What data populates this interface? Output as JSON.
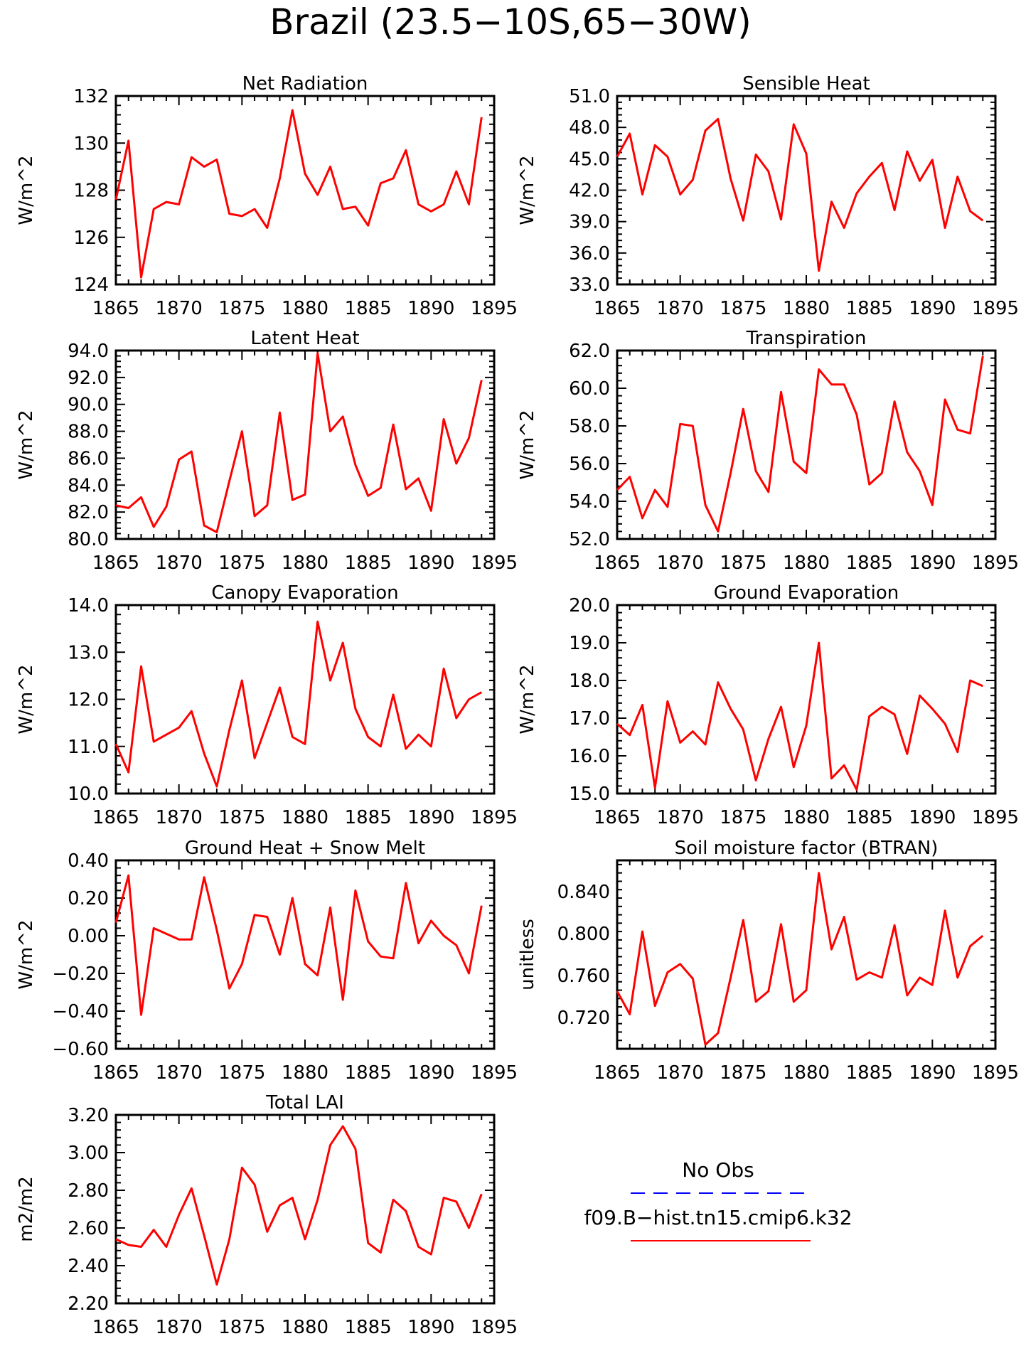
{
  "figure": {
    "title": "Brazil (23.5−10S,65−30W)"
  },
  "colors": {
    "series": "#ff0000",
    "obs": "#0000ff",
    "axis": "#000000",
    "background": "#ffffff"
  },
  "chart_data": [
    {
      "type": "line",
      "title": "Net Radiation",
      "ylabel": "W/m^2",
      "xlim": [
        1865,
        1895
      ],
      "x_ticks": [
        "1865",
        "1870",
        "1875",
        "1880",
        "1885",
        "1890",
        "1895"
      ],
      "ylim": [
        124,
        132
      ],
      "y_ticks": [
        "124",
        "126",
        "128",
        "130",
        "132"
      ],
      "series": [
        {
          "x": [
            1865,
            1866,
            1867,
            1868,
            1869,
            1870,
            1871,
            1872,
            1873,
            1874,
            1875,
            1876,
            1877,
            1878,
            1879,
            1880,
            1881,
            1882,
            1883,
            1884,
            1885,
            1886,
            1887,
            1888,
            1889,
            1890,
            1891,
            1892,
            1893,
            1894
          ],
          "y": [
            127.6,
            130.1,
            124.3,
            127.2,
            127.5,
            127.4,
            129.4,
            129.0,
            129.3,
            127.0,
            126.9,
            127.2,
            126.4,
            128.5,
            131.4,
            128.7,
            127.8,
            129.0,
            127.2,
            127.3,
            126.5,
            128.3,
            128.5,
            129.7,
            127.4,
            127.1,
            127.4,
            128.8,
            127.4,
            131.1
          ]
        }
      ]
    },
    {
      "type": "line",
      "title": "Sensible Heat",
      "ylabel": "W/m^2",
      "xlim": [
        1865,
        1895
      ],
      "x_ticks": [
        "1865",
        "1870",
        "1875",
        "1880",
        "1885",
        "1890",
        "1895"
      ],
      "ylim": [
        33,
        51
      ],
      "y_ticks": [
        "33.0",
        "36.0",
        "39.0",
        "42.0",
        "45.0",
        "48.0",
        "51.0"
      ],
      "series": [
        {
          "x": [
            1865,
            1866,
            1867,
            1868,
            1869,
            1870,
            1871,
            1872,
            1873,
            1874,
            1875,
            1876,
            1877,
            1878,
            1879,
            1880,
            1881,
            1882,
            1883,
            1884,
            1885,
            1886,
            1887,
            1888,
            1889,
            1890,
            1891,
            1892,
            1893,
            1894
          ],
          "y": [
            45.2,
            47.4,
            41.6,
            46.3,
            45.2,
            41.6,
            43.0,
            47.7,
            48.8,
            43.1,
            39.1,
            45.4,
            43.8,
            39.2,
            48.3,
            45.5,
            34.3,
            40.9,
            38.4,
            41.7,
            43.3,
            44.6,
            40.1,
            45.7,
            42.9,
            44.9,
            38.4,
            43.3,
            40.0,
            39.1
          ]
        }
      ]
    },
    {
      "type": "line",
      "title": "Latent Heat",
      "ylabel": "W/m^2",
      "xlim": [
        1865,
        1895
      ],
      "x_ticks": [
        "1865",
        "1870",
        "1875",
        "1880",
        "1885",
        "1890",
        "1895"
      ],
      "ylim": [
        80,
        94
      ],
      "y_ticks": [
        "80.0",
        "82.0",
        "84.0",
        "86.0",
        "88.0",
        "90.0",
        "92.0",
        "94.0"
      ],
      "series": [
        {
          "x": [
            1865,
            1866,
            1867,
            1868,
            1869,
            1870,
            1871,
            1872,
            1873,
            1874,
            1875,
            1876,
            1877,
            1878,
            1879,
            1880,
            1881,
            1882,
            1883,
            1884,
            1885,
            1886,
            1887,
            1888,
            1889,
            1890,
            1891,
            1892,
            1893,
            1894
          ],
          "y": [
            82.5,
            82.3,
            83.1,
            80.9,
            82.4,
            85.9,
            86.5,
            81.0,
            80.5,
            84.3,
            88.0,
            81.7,
            82.5,
            89.4,
            82.9,
            83.3,
            93.8,
            88.0,
            89.1,
            85.5,
            83.2,
            83.8,
            88.5,
            83.7,
            84.5,
            82.1,
            88.9,
            85.6,
            87.5,
            91.8
          ]
        }
      ]
    },
    {
      "type": "line",
      "title": "Transpiration",
      "ylabel": "W/m^2",
      "xlim": [
        1865,
        1895
      ],
      "x_ticks": [
        "1865",
        "1870",
        "1875",
        "1880",
        "1885",
        "1890",
        "1895"
      ],
      "ylim": [
        52,
        62
      ],
      "y_ticks": [
        "52.0",
        "54.0",
        "56.0",
        "58.0",
        "60.0",
        "62.0"
      ],
      "series": [
        {
          "x": [
            1865,
            1866,
            1867,
            1868,
            1869,
            1870,
            1871,
            1872,
            1873,
            1874,
            1875,
            1876,
            1877,
            1878,
            1879,
            1880,
            1881,
            1882,
            1883,
            1884,
            1885,
            1886,
            1887,
            1888,
            1889,
            1890,
            1891,
            1892,
            1893,
            1894
          ],
          "y": [
            54.6,
            55.3,
            53.1,
            54.6,
            53.7,
            58.1,
            58.0,
            53.8,
            52.4,
            55.5,
            58.9,
            55.6,
            54.5,
            59.8,
            56.1,
            55.5,
            61.0,
            60.2,
            60.2,
            58.6,
            54.9,
            55.5,
            59.3,
            56.6,
            55.6,
            53.8,
            59.4,
            57.8,
            57.6,
            61.7
          ]
        }
      ]
    },
    {
      "type": "line",
      "title": "Canopy Evaporation",
      "ylabel": "W/m^2",
      "xlim": [
        1865,
        1895
      ],
      "x_ticks": [
        "1865",
        "1870",
        "1875",
        "1880",
        "1885",
        "1890",
        "1895"
      ],
      "ylim": [
        10,
        14
      ],
      "y_ticks": [
        "10.0",
        "11.0",
        "12.0",
        "13.0",
        "14.0"
      ],
      "series": [
        {
          "x": [
            1865,
            1866,
            1867,
            1868,
            1869,
            1870,
            1871,
            1872,
            1873,
            1874,
            1875,
            1876,
            1877,
            1878,
            1879,
            1880,
            1881,
            1882,
            1883,
            1884,
            1885,
            1886,
            1887,
            1888,
            1889,
            1890,
            1891,
            1892,
            1893,
            1894
          ],
          "y": [
            11.05,
            10.45,
            12.7,
            11.1,
            11.25,
            11.4,
            11.75,
            10.85,
            10.15,
            11.35,
            12.4,
            10.75,
            11.5,
            12.25,
            11.2,
            11.05,
            13.65,
            12.4,
            13.2,
            11.8,
            11.2,
            11.0,
            12.1,
            10.95,
            11.25,
            11.0,
            12.65,
            11.6,
            12.0,
            12.15
          ]
        }
      ]
    },
    {
      "type": "line",
      "title": "Ground Evaporation",
      "ylabel": "W/m^2",
      "xlim": [
        1865,
        1895
      ],
      "x_ticks": [
        "1865",
        "1870",
        "1875",
        "1880",
        "1885",
        "1890",
        "1895"
      ],
      "ylim": [
        15,
        20
      ],
      "y_ticks": [
        "15.0",
        "16.0",
        "17.0",
        "18.0",
        "19.0",
        "20.0"
      ],
      "series": [
        {
          "x": [
            1865,
            1866,
            1867,
            1868,
            1869,
            1870,
            1871,
            1872,
            1873,
            1874,
            1875,
            1876,
            1877,
            1878,
            1879,
            1880,
            1881,
            1882,
            1883,
            1884,
            1885,
            1886,
            1887,
            1888,
            1889,
            1890,
            1891,
            1892,
            1893,
            1894
          ],
          "y": [
            16.85,
            16.55,
            17.35,
            15.15,
            17.45,
            16.35,
            16.65,
            16.3,
            17.95,
            17.25,
            16.7,
            15.35,
            16.45,
            17.3,
            15.7,
            16.8,
            19.0,
            15.4,
            15.75,
            15.1,
            17.05,
            17.3,
            17.1,
            16.05,
            17.6,
            17.25,
            16.85,
            16.1,
            18.0,
            17.85
          ]
        }
      ]
    },
    {
      "type": "line",
      "title": "Ground Heat + Snow Melt",
      "ylabel": "W/m^2",
      "xlim": [
        1865,
        1895
      ],
      "x_ticks": [
        "1865",
        "1870",
        "1875",
        "1880",
        "1885",
        "1890",
        "1895"
      ],
      "ylim": [
        -0.6,
        0.4
      ],
      "y_ticks": [
        "−0.60",
        "−0.40",
        "−0.20",
        "0.00",
        "0.20",
        "0.40"
      ],
      "series": [
        {
          "x": [
            1865,
            1866,
            1867,
            1868,
            1869,
            1870,
            1871,
            1872,
            1873,
            1874,
            1875,
            1876,
            1877,
            1878,
            1879,
            1880,
            1881,
            1882,
            1883,
            1884,
            1885,
            1886,
            1887,
            1888,
            1889,
            1890,
            1891,
            1892,
            1893,
            1894
          ],
          "y": [
            0.07,
            0.32,
            -0.42,
            0.04,
            0.01,
            -0.02,
            -0.02,
            0.31,
            0.03,
            -0.28,
            -0.15,
            0.11,
            0.1,
            -0.1,
            0.2,
            -0.15,
            -0.21,
            0.15,
            -0.34,
            0.24,
            -0.03,
            -0.11,
            -0.12,
            0.28,
            -0.04,
            0.08,
            0.0,
            -0.05,
            -0.2,
            0.16
          ]
        }
      ]
    },
    {
      "type": "line",
      "title": "Soil moisture factor (BTRAN)",
      "ylabel": "unitless",
      "xlim": [
        1865,
        1895
      ],
      "x_ticks": [
        "1865",
        "1870",
        "1875",
        "1880",
        "1885",
        "1890",
        "1895"
      ],
      "ylim": [
        0.69,
        0.87
      ],
      "y_ticks": [
        "0.720",
        "0.760",
        "0.800",
        "0.840"
      ],
      "y_tick_values": [
        0.72,
        0.76,
        0.8,
        0.84
      ],
      "series": [
        {
          "x": [
            1865,
            1866,
            1867,
            1868,
            1869,
            1870,
            1871,
            1872,
            1873,
            1874,
            1875,
            1876,
            1877,
            1878,
            1879,
            1880,
            1881,
            1882,
            1883,
            1884,
            1885,
            1886,
            1887,
            1888,
            1889,
            1890,
            1891,
            1892,
            1893,
            1894
          ],
          "y": [
            0.745,
            0.723,
            0.802,
            0.731,
            0.763,
            0.771,
            0.757,
            0.694,
            0.705,
            0.758,
            0.813,
            0.735,
            0.745,
            0.809,
            0.735,
            0.746,
            0.858,
            0.785,
            0.816,
            0.756,
            0.763,
            0.758,
            0.808,
            0.741,
            0.758,
            0.751,
            0.822,
            0.758,
            0.788,
            0.798
          ]
        }
      ]
    },
    {
      "type": "line",
      "title": "Total LAI",
      "ylabel": "m2/m2",
      "xlim": [
        1865,
        1895
      ],
      "x_ticks": [
        "1865",
        "1870",
        "1875",
        "1880",
        "1885",
        "1890",
        "1895"
      ],
      "ylim": [
        2.2,
        3.2
      ],
      "y_ticks": [
        "2.20",
        "2.40",
        "2.60",
        "2.80",
        "3.00",
        "3.20"
      ],
      "series": [
        {
          "x": [
            1865,
            1866,
            1867,
            1868,
            1869,
            1870,
            1871,
            1872,
            1873,
            1874,
            1875,
            1876,
            1877,
            1878,
            1879,
            1880,
            1881,
            1882,
            1883,
            1884,
            1885,
            1886,
            1887,
            1888,
            1889,
            1890,
            1891,
            1892,
            1893,
            1894
          ],
          "y": [
            2.54,
            2.51,
            2.5,
            2.59,
            2.5,
            2.67,
            2.81,
            2.56,
            2.3,
            2.54,
            2.92,
            2.83,
            2.58,
            2.72,
            2.76,
            2.54,
            2.75,
            3.04,
            3.14,
            3.02,
            2.52,
            2.47,
            2.75,
            2.69,
            2.5,
            2.46,
            2.76,
            2.74,
            2.6,
            2.78
          ]
        }
      ]
    }
  ],
  "legend": {
    "items": [
      {
        "label": "No Obs",
        "style": "dashed",
        "color": "#0000ff"
      },
      {
        "label": "f09.B−hist.tn15.cmip6.k32",
        "style": "solid",
        "color": "#ff0000"
      }
    ]
  }
}
